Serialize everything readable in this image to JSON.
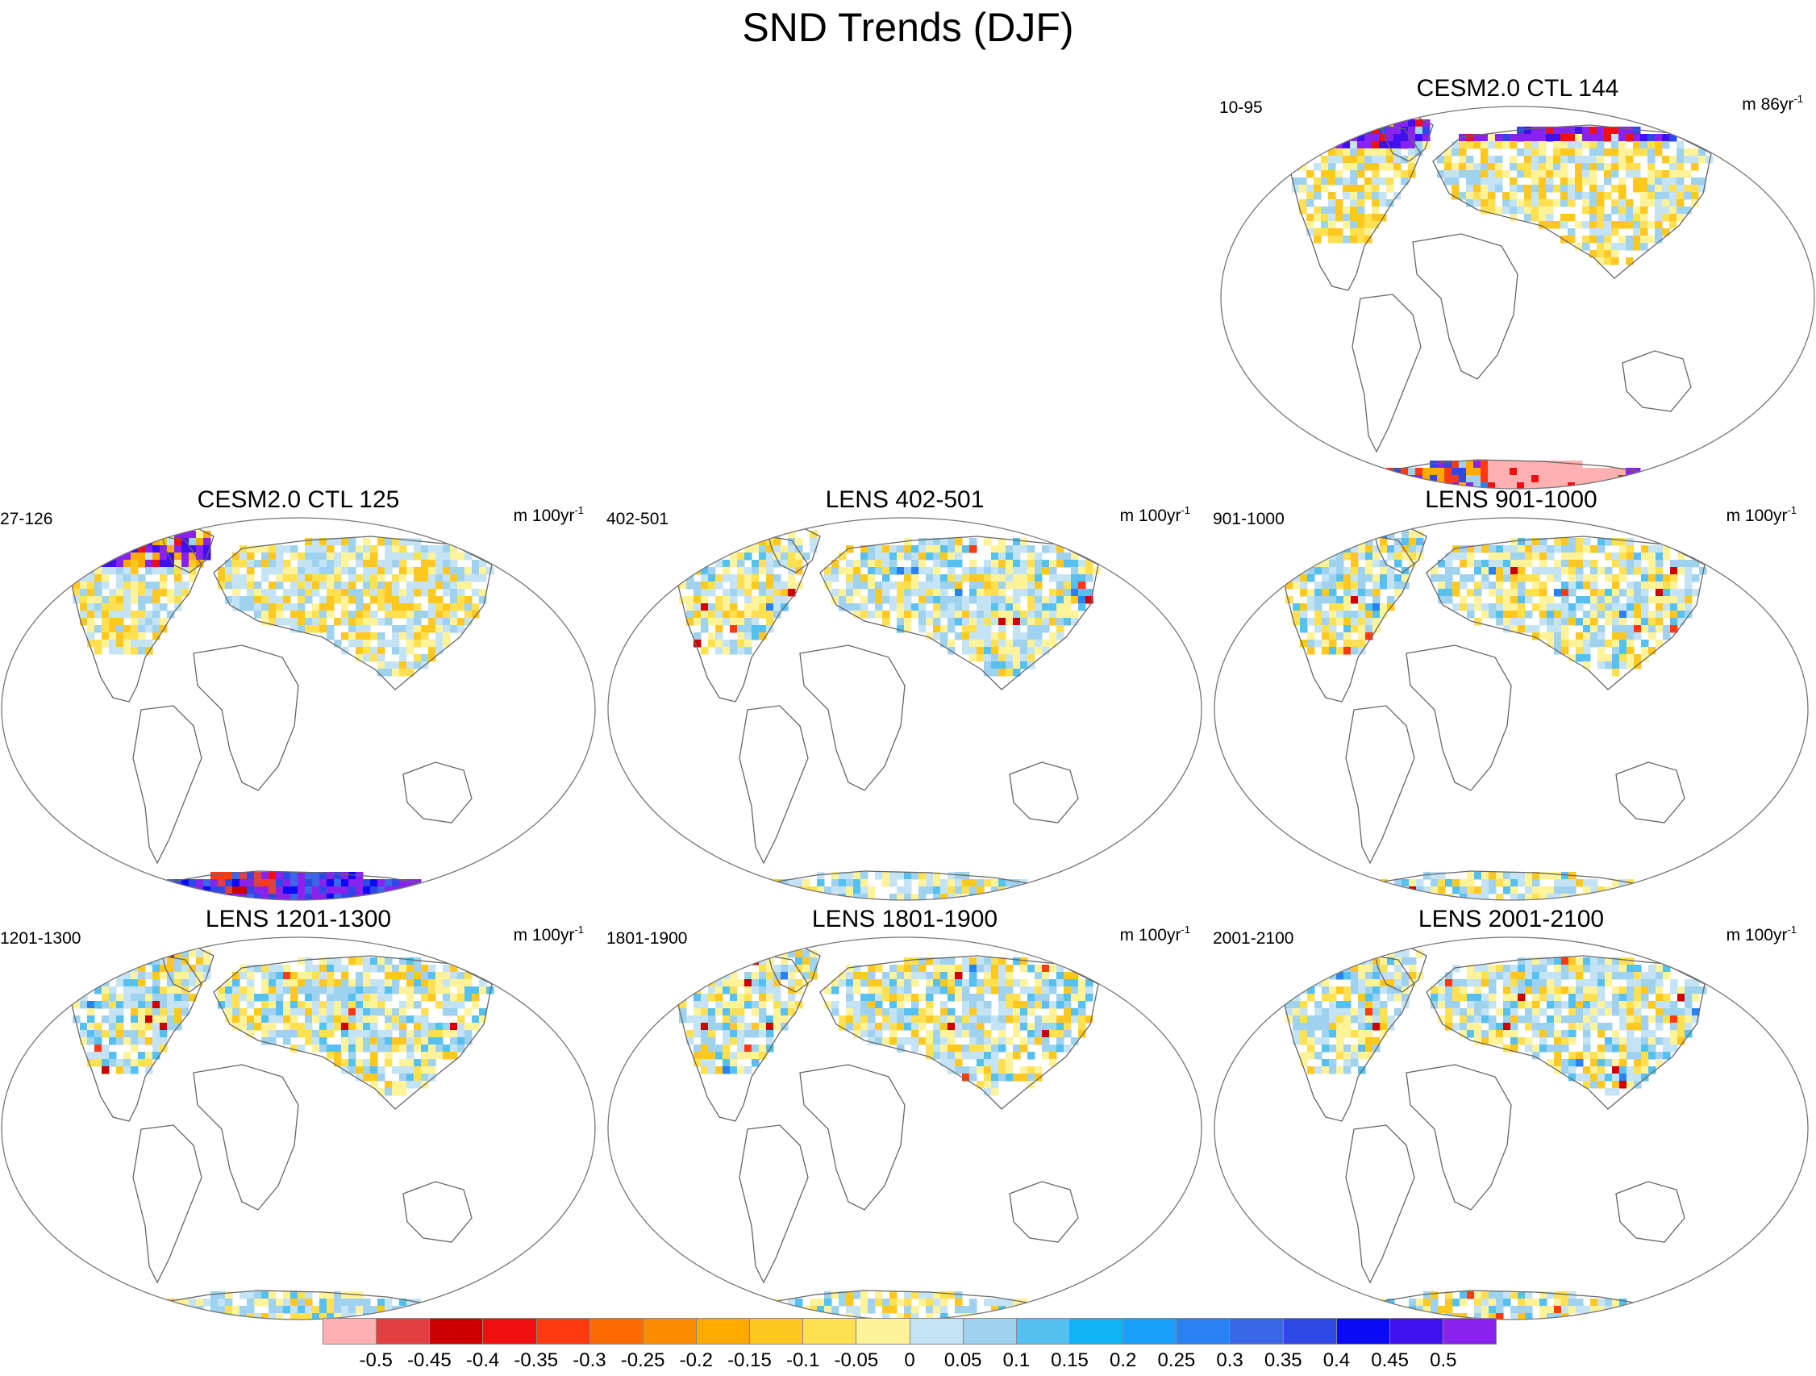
{
  "title": "SND Trends (DJF)",
  "units_prefix": "m",
  "units_suffix": "yr",
  "units_exp": "-1",
  "panels": [
    {
      "title": "CESM2.0 CTL 144",
      "period": "10-95",
      "units_num": "86",
      "scheme": "ctl144"
    },
    {
      "title": "CESM2.0 CTL 125",
      "period": "27-126",
      "units_num": "100",
      "scheme": "ctl125"
    },
    {
      "title": "LENS 402-501",
      "period": "402-501",
      "units_num": "100",
      "scheme": "lens"
    },
    {
      "title": "LENS 901-1000",
      "period": "901-1000",
      "units_num": "100",
      "scheme": "lens"
    },
    {
      "title": "LENS 1201-1300",
      "period": "1201-1300",
      "units_num": "100",
      "scheme": "lens"
    },
    {
      "title": "LENS 1801-1900",
      "period": "1801-1900",
      "units_num": "100",
      "scheme": "lens"
    },
    {
      "title": "LENS 2001-2100",
      "period": "2001-2100",
      "units_num": "100",
      "scheme": "lens"
    }
  ],
  "colorbar": {
    "labels": [
      "-0.5",
      "-0.45",
      "-0.4",
      "-0.35",
      "-0.3",
      "-0.25",
      "-0.2",
      "-0.15",
      "-0.1",
      "-0.05",
      "0",
      "0.05",
      "0.1",
      "0.15",
      "0.2",
      "0.25",
      "0.3",
      "0.35",
      "0.4",
      "0.45",
      "0.5"
    ],
    "colors": [
      "#ffb0b0",
      "#e04040",
      "#cc0000",
      "#ee1010",
      "#ff3a10",
      "#ff6a00",
      "#ff8c00",
      "#ffaa00",
      "#ffc820",
      "#ffe050",
      "#fff39a",
      "#c4e4f6",
      "#9ed2ee",
      "#56c0f0",
      "#12b4f4",
      "#18a0fa",
      "#2a82f2",
      "#3a66e8",
      "#2e48e6",
      "#0a0af4",
      "#4010ee",
      "#8a22ee"
    ]
  }
}
